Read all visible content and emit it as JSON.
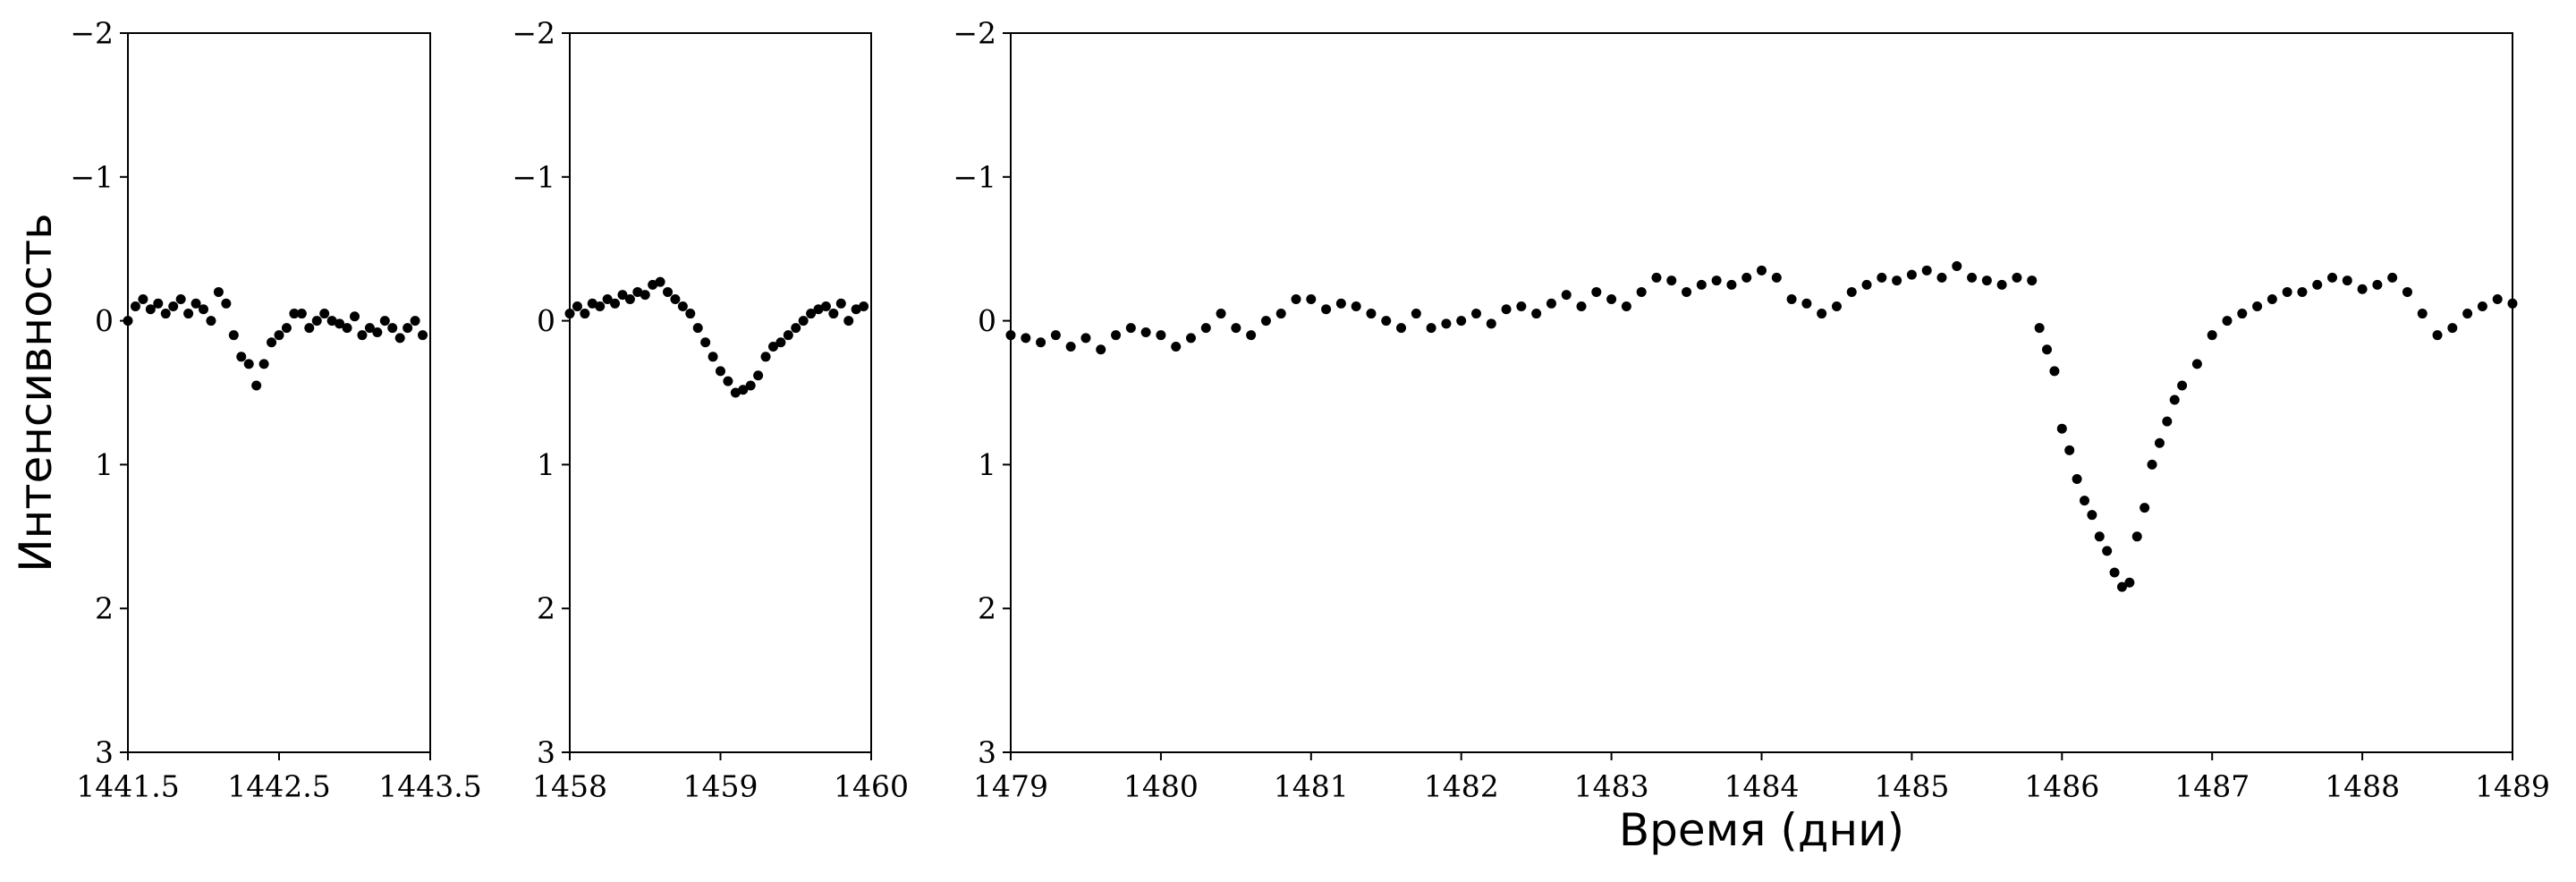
{
  "chart_data": [
    {
      "type": "scatter",
      "ylabel": "Интенсивность",
      "color": "#000000",
      "invert_y": true,
      "xlim": [
        1441.5,
        1443.5
      ],
      "xticks": [
        1441.5,
        1442.5,
        1443.5
      ],
      "ylim": [
        -2,
        3
      ],
      "yticks": [
        {
          "value": -2,
          "label": "−2"
        },
        {
          "value": -1,
          "label": "−1"
        },
        0,
        1,
        2,
        3
      ],
      "x": [
        1441.5,
        1441.55,
        1441.6,
        1441.65,
        1441.7,
        1441.75,
        1441.8,
        1441.85,
        1441.9,
        1441.95,
        1442.0,
        1442.05,
        1442.1,
        1442.15,
        1442.2,
        1442.25,
        1442.3,
        1442.35,
        1442.4,
        1442.45,
        1442.5,
        1442.55,
        1442.6,
        1442.65,
        1442.7,
        1442.75,
        1442.8,
        1442.85,
        1442.9,
        1442.95,
        1443.0,
        1443.05,
        1443.1,
        1443.15,
        1443.2,
        1443.25,
        1443.3,
        1443.35,
        1443.4,
        1443.45
      ],
      "values": [
        0.0,
        -0.1,
        -0.15,
        -0.08,
        -0.12,
        -0.05,
        -0.1,
        -0.15,
        -0.05,
        -0.12,
        -0.08,
        0.0,
        -0.2,
        -0.12,
        0.1,
        0.25,
        0.3,
        0.45,
        0.3,
        0.15,
        0.1,
        0.05,
        -0.05,
        -0.05,
        0.05,
        0.0,
        -0.05,
        0.0,
        0.02,
        0.05,
        -0.03,
        0.1,
        0.05,
        0.08,
        0.0,
        0.05,
        0.12,
        0.05,
        0.0,
        0.1
      ]
    },
    {
      "type": "scatter",
      "color": "#000000",
      "invert_y": true,
      "xlim": [
        1458,
        1460
      ],
      "xticks": [
        1458,
        1459,
        1460
      ],
      "ylim": [
        -2,
        3
      ],
      "yticks": [
        {
          "value": -2,
          "label": "−2"
        },
        {
          "value": -1,
          "label": "−1"
        },
        0,
        1,
        2,
        3
      ],
      "x": [
        1458.0,
        1458.05,
        1458.1,
        1458.15,
        1458.2,
        1458.25,
        1458.3,
        1458.35,
        1458.4,
        1458.45,
        1458.5,
        1458.55,
        1458.6,
        1458.65,
        1458.7,
        1458.75,
        1458.8,
        1458.85,
        1458.9,
        1458.95,
        1459.0,
        1459.05,
        1459.1,
        1459.15,
        1459.2,
        1459.25,
        1459.3,
        1459.35,
        1459.4,
        1459.45,
        1459.5,
        1459.55,
        1459.6,
        1459.65,
        1459.7,
        1459.75,
        1459.8,
        1459.85,
        1459.9,
        1459.95
      ],
      "values": [
        -0.05,
        -0.1,
        -0.05,
        -0.12,
        -0.1,
        -0.15,
        -0.12,
        -0.18,
        -0.15,
        -0.2,
        -0.18,
        -0.25,
        -0.27,
        -0.2,
        -0.15,
        -0.1,
        -0.05,
        0.05,
        0.15,
        0.25,
        0.35,
        0.42,
        0.5,
        0.48,
        0.45,
        0.38,
        0.25,
        0.18,
        0.15,
        0.1,
        0.05,
        0.0,
        -0.05,
        -0.08,
        -0.1,
        -0.05,
        -0.12,
        0.0,
        -0.08,
        -0.1
      ]
    },
    {
      "type": "scatter",
      "xlabel": "Время (дни)",
      "color": "#000000",
      "invert_y": true,
      "xlim": [
        1479,
        1489
      ],
      "xticks": [
        1479,
        1480,
        1481,
        1482,
        1483,
        1484,
        1485,
        1486,
        1487,
        1488,
        1489
      ],
      "ylim": [
        -2,
        3
      ],
      "yticks": [
        {
          "value": -2,
          "label": "−2"
        },
        {
          "value": -1,
          "label": "−1"
        },
        0,
        1,
        2,
        3
      ],
      "x": [
        1479.0,
        1479.1,
        1479.2,
        1479.3,
        1479.4,
        1479.5,
        1479.6,
        1479.7,
        1479.8,
        1479.9,
        1480.0,
        1480.1,
        1480.2,
        1480.3,
        1480.4,
        1480.5,
        1480.6,
        1480.7,
        1480.8,
        1480.9,
        1481.0,
        1481.1,
        1481.2,
        1481.3,
        1481.4,
        1481.5,
        1481.6,
        1481.7,
        1481.8,
        1481.9,
        1482.0,
        1482.1,
        1482.2,
        1482.3,
        1482.4,
        1482.5,
        1482.6,
        1482.7,
        1482.8,
        1482.9,
        1483.0,
        1483.1,
        1483.2,
        1483.3,
        1483.4,
        1483.5,
        1483.6,
        1483.7,
        1483.8,
        1483.9,
        1484.0,
        1484.1,
        1484.2,
        1484.3,
        1484.4,
        1484.5,
        1484.6,
        1484.7,
        1484.8,
        1484.9,
        1485.0,
        1485.1,
        1485.2,
        1485.3,
        1485.4,
        1485.5,
        1485.6,
        1485.7,
        1485.8,
        1485.85,
        1485.9,
        1485.95,
        1486.0,
        1486.05,
        1486.1,
        1486.15,
        1486.2,
        1486.25,
        1486.3,
        1486.35,
        1486.4,
        1486.45,
        1486.5,
        1486.55,
        1486.6,
        1486.65,
        1486.7,
        1486.75,
        1486.8,
        1486.9,
        1487.0,
        1487.1,
        1487.2,
        1487.3,
        1487.4,
        1487.5,
        1487.6,
        1487.7,
        1487.8,
        1487.9,
        1488.0,
        1488.1,
        1488.2,
        1488.3,
        1488.4,
        1488.5,
        1488.6,
        1488.7,
        1488.8,
        1488.9,
        1489.0
      ],
      "values": [
        0.1,
        0.12,
        0.15,
        0.1,
        0.18,
        0.12,
        0.2,
        0.1,
        0.05,
        0.08,
        0.1,
        0.18,
        0.12,
        0.05,
        -0.05,
        0.05,
        0.1,
        0.0,
        -0.05,
        -0.15,
        -0.15,
        -0.08,
        -0.12,
        -0.1,
        -0.05,
        0.0,
        0.05,
        -0.05,
        0.05,
        0.02,
        0.0,
        -0.05,
        0.02,
        -0.08,
        -0.1,
        -0.05,
        -0.12,
        -0.18,
        -0.1,
        -0.2,
        -0.15,
        -0.1,
        -0.2,
        -0.3,
        -0.28,
        -0.2,
        -0.25,
        -0.28,
        -0.25,
        -0.3,
        -0.35,
        -0.3,
        -0.15,
        -0.12,
        -0.05,
        -0.1,
        -0.2,
        -0.25,
        -0.3,
        -0.28,
        -0.32,
        -0.35,
        -0.3,
        -0.38,
        -0.3,
        -0.28,
        -0.25,
        -0.3,
        -0.28,
        0.05,
        0.2,
        0.35,
        0.75,
        0.9,
        1.1,
        1.25,
        1.35,
        1.5,
        1.6,
        1.75,
        1.85,
        1.82,
        1.5,
        1.3,
        1.0,
        0.85,
        0.7,
        0.55,
        0.45,
        0.3,
        0.1,
        0.0,
        -0.05,
        -0.1,
        -0.15,
        -0.2,
        -0.2,
        -0.25,
        -0.3,
        -0.28,
        -0.22,
        -0.25,
        -0.3,
        -0.2,
        -0.05,
        0.1,
        0.05,
        -0.05,
        -0.1,
        -0.15,
        -0.12
      ]
    }
  ]
}
